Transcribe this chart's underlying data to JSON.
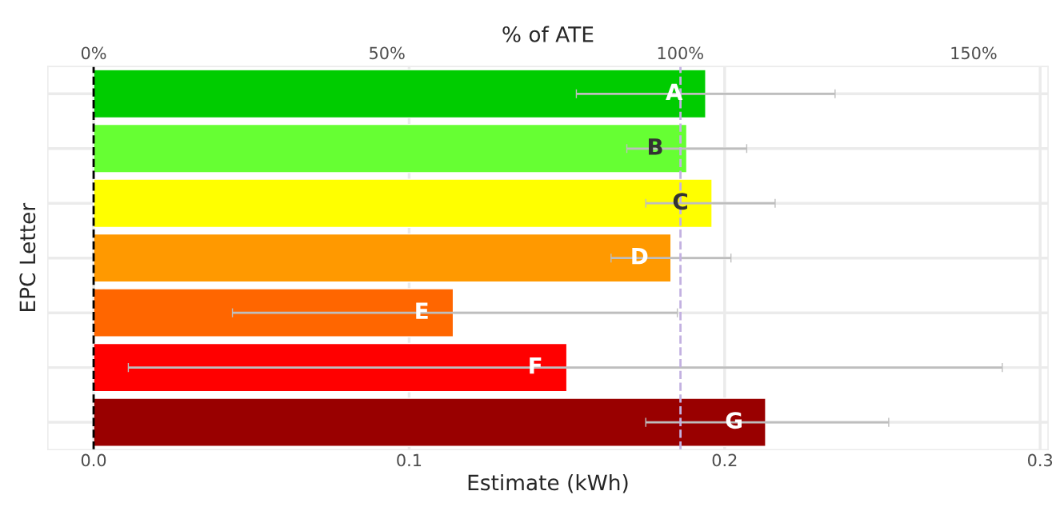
{
  "chart_data": {
    "type": "bar",
    "orientation": "horizontal",
    "xlabel": "Estimate (kWh)",
    "ylabel": "EPC Letter",
    "x2label": "% of ATE",
    "categories": [
      "A",
      "B",
      "C",
      "D",
      "E",
      "F",
      "G"
    ],
    "values": [
      0.194,
      0.188,
      0.196,
      0.183,
      0.114,
      0.15,
      0.213
    ],
    "colors": [
      "#00cc00",
      "#66ff33",
      "#ffff00",
      "#ff9900",
      "#ff6600",
      "#ff0000",
      "#990000"
    ],
    "errors": [
      [
        0.153,
        0.235
      ],
      [
        0.169,
        0.207
      ],
      [
        0.175,
        0.216
      ],
      [
        0.164,
        0.202
      ],
      [
        0.044,
        0.185
      ],
      [
        0.011,
        0.288
      ],
      [
        0.175,
        0.252
      ]
    ],
    "xlim": [
      -0.0145,
      0.3025
    ],
    "xticks": [
      {
        "value": 0,
        "label": "0.0"
      },
      0.1,
      0.2,
      0.3
    ],
    "x2lim": [
      -7.8,
      162.7
    ],
    "x2ticks": [
      {
        "value": 0,
        "label": "0%"
      },
      {
        "value": 50,
        "label": "50%"
      },
      {
        "value": 100,
        "label": "100%"
      },
      {
        "value": 150,
        "label": "150%"
      }
    ],
    "ref_lines": [
      {
        "axis": "x",
        "value": 0,
        "color": "#000000",
        "line_style": "dashed"
      },
      {
        "axis": "x",
        "value": 0.186,
        "color": "#c3b1e1",
        "line_style": "dashed"
      }
    ],
    "grid": true,
    "tick_labels": "x"
  }
}
